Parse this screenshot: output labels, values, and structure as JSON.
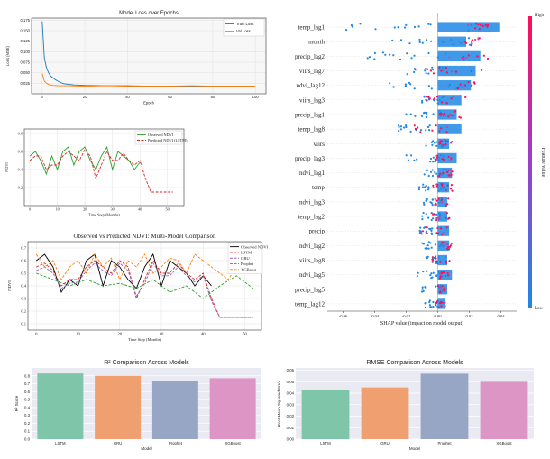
{
  "chart_data": [
    {
      "type": "line",
      "title": "Model Loss over Epochs",
      "xlabel": "Epoch",
      "ylabel": "Loss (MSE)",
      "xlim": [
        -5,
        105
      ],
      "ylim": [
        0.0,
        0.18
      ],
      "xticks": [
        0,
        20,
        40,
        60,
        80,
        100
      ],
      "yticks": [
        0.025,
        0.05,
        0.075,
        0.1,
        0.125,
        0.15,
        0.175
      ],
      "legend": [
        "Train Loss",
        "Val Loss"
      ],
      "series": [
        {
          "name": "Train Loss",
          "color": "#1f77b4",
          "x": [
            0,
            1,
            2,
            3,
            4,
            6,
            8,
            10,
            15,
            20,
            30,
            40,
            50,
            60,
            70,
            80,
            90,
            100
          ],
          "y": [
            0.172,
            0.085,
            0.062,
            0.05,
            0.042,
            0.034,
            0.028,
            0.024,
            0.021,
            0.02,
            0.019,
            0.019,
            0.018,
            0.018,
            0.018,
            0.018,
            0.018,
            0.018
          ]
        },
        {
          "name": "Val Loss",
          "color": "#ff7f0e",
          "x": [
            0,
            1,
            2,
            3,
            5,
            8,
            12,
            20,
            30,
            40,
            50,
            60,
            70,
            80,
            90,
            100
          ],
          "y": [
            0.048,
            0.03,
            0.025,
            0.022,
            0.02,
            0.019,
            0.019,
            0.018,
            0.019,
            0.018,
            0.018,
            0.018,
            0.019,
            0.018,
            0.018,
            0.018
          ]
        }
      ]
    },
    {
      "type": "line",
      "title": "",
      "xlabel": "Time Step (Months)",
      "ylabel": "NDVI",
      "xlim": [
        -2,
        56
      ],
      "ylim": [
        0.0,
        0.85
      ],
      "xticks": [
        0,
        10,
        20,
        30,
        40,
        50
      ],
      "yticks": [
        0.2,
        0.4,
        0.6,
        0.8
      ],
      "legend": [
        "Observed NDVI",
        "Predicted NDVI (LSTM)"
      ],
      "series": [
        {
          "name": "Observed NDVI",
          "color": "#2ca02c",
          "x": [
            0,
            2,
            4,
            6,
            8,
            10,
            12,
            14,
            16,
            18,
            20,
            22,
            24,
            26,
            28,
            30,
            32,
            34,
            36,
            38,
            40
          ],
          "y": [
            0.55,
            0.6,
            0.5,
            0.35,
            0.55,
            0.4,
            0.6,
            0.65,
            0.45,
            0.6,
            0.65,
            0.5,
            0.4,
            0.55,
            0.65,
            0.4,
            0.6,
            0.55,
            0.5,
            0.4,
            0.48
          ]
        },
        {
          "name": "Predicted NDVI (LSTM)",
          "color": "#d62728",
          "x": [
            0,
            2,
            4,
            6,
            8,
            10,
            12,
            14,
            16,
            18,
            20,
            22,
            24,
            26,
            28,
            30,
            32,
            34,
            36,
            38,
            40,
            42,
            44,
            46,
            48,
            50,
            52
          ],
          "y": [
            0.5,
            0.55,
            0.55,
            0.4,
            0.45,
            0.45,
            0.55,
            0.6,
            0.55,
            0.5,
            0.62,
            0.55,
            0.3,
            0.45,
            0.6,
            0.5,
            0.5,
            0.58,
            0.5,
            0.45,
            0.5,
            0.3,
            0.15,
            0.15,
            0.15,
            0.15,
            0.15
          ]
        }
      ]
    },
    {
      "type": "line",
      "title": "Observed vs Predicted NDVI: Multi-Model Comparison",
      "xlabel": "Time Step (Months)",
      "ylabel": "NDVI",
      "xlim": [
        -2,
        54
      ],
      "ylim": [
        0.05,
        0.75
      ],
      "xticks": [
        0,
        10,
        20,
        30,
        40,
        50
      ],
      "yticks": [
        0.1,
        0.2,
        0.3,
        0.4,
        0.5,
        0.6,
        0.7
      ],
      "legend": [
        "Observed NDVI",
        "LSTM",
        "GRU",
        "Prophet",
        "XGBoost"
      ],
      "series": [
        {
          "name": "Observed NDVI",
          "color": "#000000",
          "x": [
            0,
            2,
            4,
            6,
            8,
            10,
            12,
            14,
            16,
            18,
            20,
            22,
            24,
            26,
            28,
            30,
            32,
            34,
            36,
            38,
            40,
            42
          ],
          "y": [
            0.6,
            0.65,
            0.55,
            0.35,
            0.45,
            0.4,
            0.6,
            0.65,
            0.4,
            0.6,
            0.55,
            0.45,
            0.38,
            0.55,
            0.65,
            0.4,
            0.6,
            0.55,
            0.5,
            0.4,
            0.48,
            0.4
          ]
        },
        {
          "name": "LSTM",
          "color": "#d62728",
          "x": [
            0,
            2,
            4,
            6,
            8,
            10,
            12,
            14,
            16,
            18,
            20,
            22,
            24,
            26,
            28,
            30,
            32,
            34,
            36,
            38,
            40,
            42,
            44,
            46,
            48,
            50,
            52
          ],
          "y": [
            0.55,
            0.58,
            0.52,
            0.4,
            0.45,
            0.45,
            0.55,
            0.6,
            0.55,
            0.5,
            0.6,
            0.55,
            0.3,
            0.45,
            0.6,
            0.5,
            0.5,
            0.58,
            0.5,
            0.45,
            0.5,
            0.3,
            0.15,
            0.15,
            0.15,
            0.15,
            0.15
          ]
        },
        {
          "name": "GRU",
          "color": "#9467bd",
          "x": [
            0,
            2,
            4,
            6,
            8,
            10,
            12,
            14,
            16,
            18,
            20,
            22,
            24,
            26,
            28,
            30,
            32,
            34,
            36,
            38,
            40,
            42,
            44,
            46,
            48,
            50,
            52
          ],
          "y": [
            0.52,
            0.55,
            0.5,
            0.38,
            0.42,
            0.43,
            0.52,
            0.58,
            0.52,
            0.48,
            0.58,
            0.52,
            0.32,
            0.42,
            0.58,
            0.48,
            0.48,
            0.55,
            0.48,
            0.43,
            0.48,
            0.28,
            0.15,
            0.15,
            0.15,
            0.15,
            0.15
          ]
        },
        {
          "name": "Prophet",
          "color": "#2ca02c",
          "x": [
            0,
            4,
            8,
            12,
            16,
            20,
            24,
            28,
            32,
            36,
            40,
            44,
            48,
            52
          ],
          "y": [
            0.5,
            0.45,
            0.4,
            0.45,
            0.4,
            0.42,
            0.38,
            0.45,
            0.35,
            0.4,
            0.3,
            0.4,
            0.48,
            0.38
          ]
        },
        {
          "name": "XGBoost",
          "color": "#ff7f0e",
          "x": [
            0,
            2,
            4,
            6,
            8,
            10,
            12,
            14,
            16,
            18,
            20,
            22,
            24,
            26,
            28,
            30,
            32,
            34,
            36,
            38,
            40,
            42,
            44,
            46,
            48,
            50,
            52
          ],
          "y": [
            0.65,
            0.55,
            0.6,
            0.45,
            0.55,
            0.6,
            0.5,
            0.65,
            0.55,
            0.62,
            0.45,
            0.6,
            0.55,
            0.65,
            0.5,
            0.55,
            0.62,
            0.6,
            0.5,
            0.65,
            0.6,
            0.55,
            0.5,
            0.45,
            0.55,
            0.65,
            0.6
          ]
        }
      ]
    },
    {
      "type": "bar",
      "title": "R² Comparison Across Models",
      "xlabel": "Model",
      "ylabel": "R² Score",
      "ylim": [
        0,
        0.9
      ],
      "yticks": [
        0.0,
        0.1,
        0.2,
        0.3,
        0.4,
        0.5,
        0.6,
        0.7,
        0.8
      ],
      "categories": [
        "LSTM",
        "GRU",
        "Prophet",
        "XGBoost"
      ],
      "values": [
        0.83,
        0.8,
        0.74,
        0.77
      ],
      "colors": [
        "#7fc5a9",
        "#f0a070",
        "#98a6c6",
        "#dd95c6"
      ]
    },
    {
      "type": "bar",
      "title": "RMSE Comparison Across Models",
      "xlabel": "Model",
      "ylabel": "Root Mean Squared Error",
      "ylim": [
        0,
        0.062
      ],
      "yticks": [
        0.0,
        0.01,
        0.02,
        0.03,
        0.04,
        0.05,
        0.06
      ],
      "categories": [
        "LSTM",
        "GRU",
        "Prophet",
        "XGBoost"
      ],
      "values": [
        0.043,
        0.045,
        0.057,
        0.05
      ],
      "colors": [
        "#7fc5a9",
        "#f0a070",
        "#98a6c6",
        "#dd95c6"
      ]
    },
    {
      "type": "scatter",
      "title": "",
      "subtype": "shap-beeswarm",
      "xlabel": "SHAP value (impact on model output)",
      "xlim": [
        -0.07,
        0.05
      ],
      "xticks": [
        -0.06,
        -0.04,
        -0.02,
        0.0,
        0.02,
        0.04
      ],
      "colorbar_label": "Feature value",
      "colorbar_high": "High",
      "colorbar_low": "Low",
      "features": [
        {
          "name": "temp_lag1",
          "lo": -0.065,
          "hi": 0.035,
          "pink_center": 0.025
        },
        {
          "name": "month",
          "lo": -0.03,
          "hi": 0.03,
          "pink_center": 0.022
        },
        {
          "name": "precip_lag2",
          "lo": -0.045,
          "hi": 0.038,
          "pink_center": 0.018
        },
        {
          "name": "viirs_lag7",
          "lo": -0.02,
          "hi": 0.04,
          "pink_center": 0.012
        },
        {
          "name": "ndvi_lag12",
          "lo": -0.035,
          "hi": 0.028,
          "pink_center": 0.018
        },
        {
          "name": "viirs_lag3",
          "lo": -0.01,
          "hi": 0.025,
          "pink_center": 0.005
        },
        {
          "name": "precip_lag1",
          "lo": -0.02,
          "hi": 0.018,
          "pink_center": 0.008
        },
        {
          "name": "temp_lag8",
          "lo": -0.025,
          "hi": 0.012,
          "pink_center": -0.005
        },
        {
          "name": "viirs",
          "lo": -0.008,
          "hi": 0.012,
          "pink_center": 0.005
        },
        {
          "name": "precip_lag3",
          "lo": -0.02,
          "hi": 0.012,
          "pink_center": 0.004
        },
        {
          "name": "ndvi_lag1",
          "lo": -0.01,
          "hi": 0.015,
          "pink_center": 0.006
        },
        {
          "name": "temp",
          "lo": -0.012,
          "hi": 0.012,
          "pink_center": 0.003
        },
        {
          "name": "ndvi_lag3",
          "lo": -0.01,
          "hi": 0.01,
          "pink_center": 0.003
        },
        {
          "name": "temp_lag2",
          "lo": -0.01,
          "hi": 0.01,
          "pink_center": 0.002
        },
        {
          "name": "precip",
          "lo": -0.012,
          "hi": 0.01,
          "pink_center": -0.003
        },
        {
          "name": "ndvi_lag2",
          "lo": -0.01,
          "hi": 0.012,
          "pink_center": 0.006
        },
        {
          "name": "viirs_lag8",
          "lo": -0.008,
          "hi": 0.01,
          "pink_center": 0.002
        },
        {
          "name": "ndvi_lag5",
          "lo": -0.015,
          "hi": 0.008,
          "pink_center": 0.004
        },
        {
          "name": "precip_lag5",
          "lo": -0.01,
          "hi": 0.008,
          "pink_center": 0.003
        },
        {
          "name": "temp_lag12",
          "lo": -0.008,
          "hi": 0.008,
          "pink_center": 0.002
        }
      ]
    }
  ]
}
